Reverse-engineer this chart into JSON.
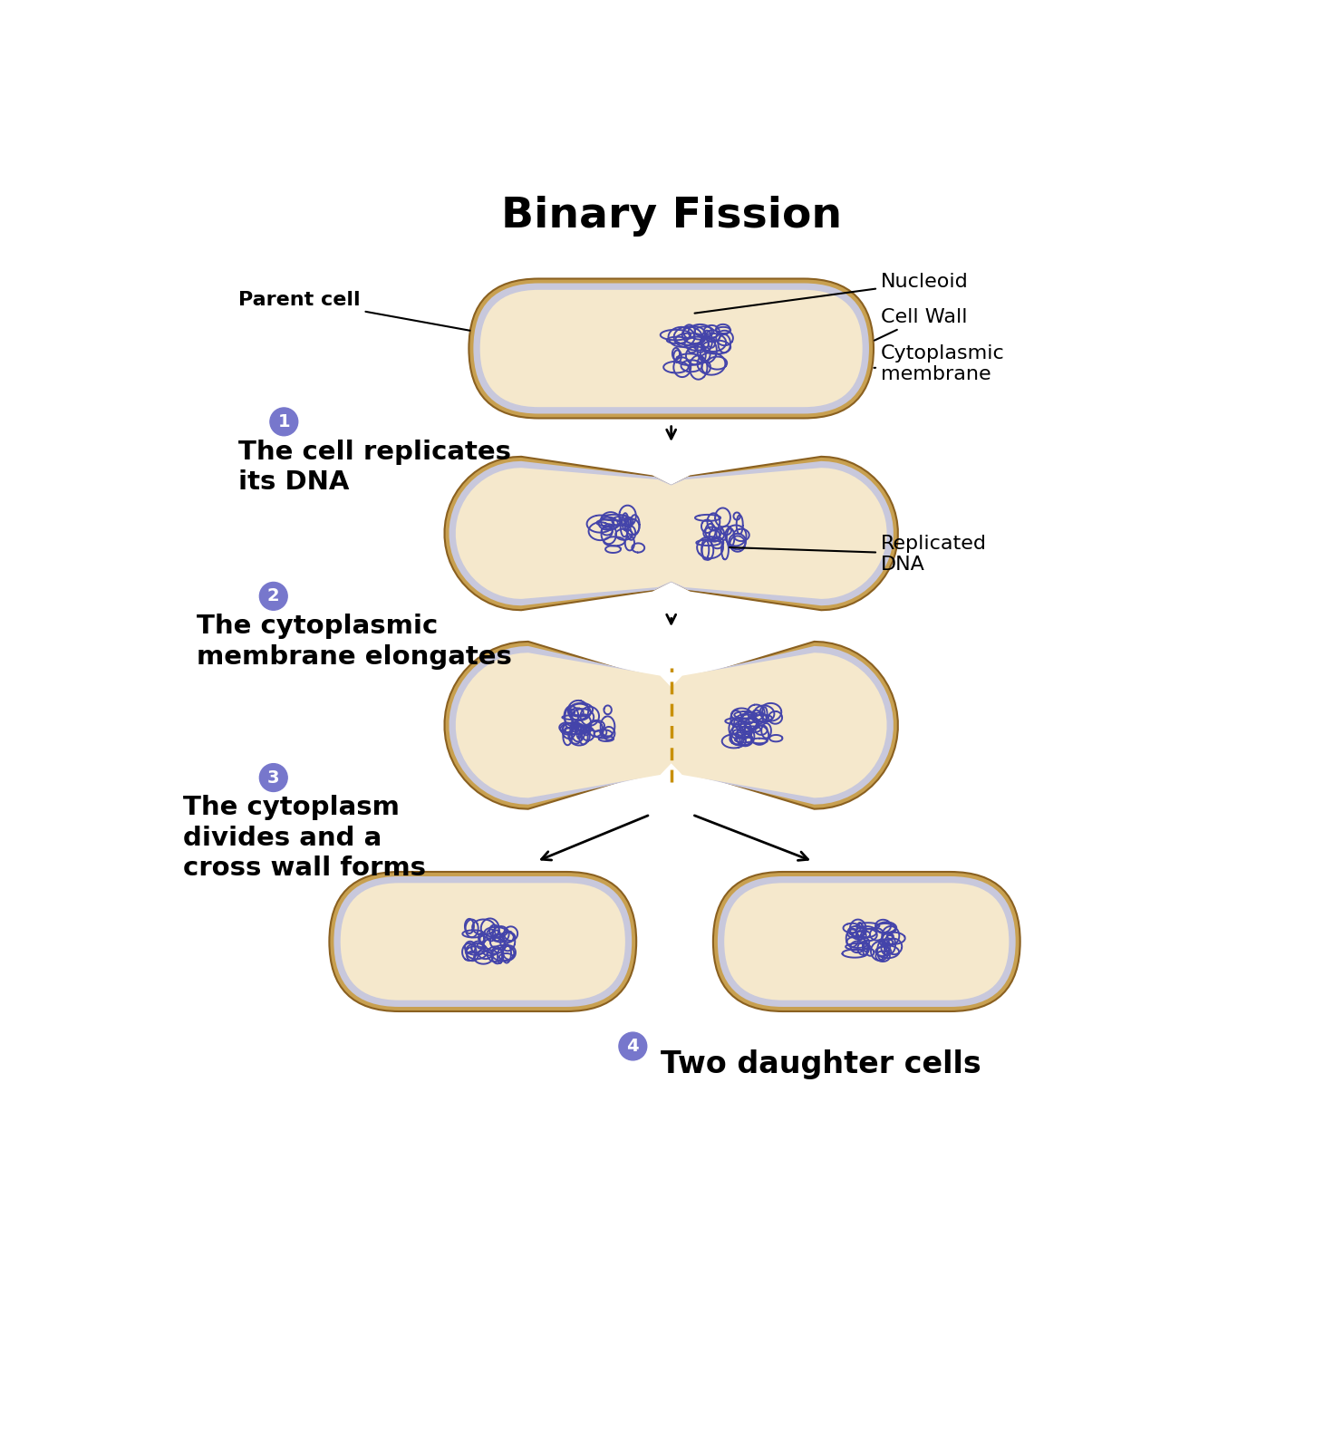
{
  "title": "Binary Fission",
  "title_fontsize": 34,
  "title_fontweight": "bold",
  "bg_color": "#ffffff",
  "cell_wall_color_outer": "#c8a050",
  "cell_wall_color_line": "#8a6020",
  "cell_membrane_color": "#c8c8dc",
  "cytoplasm_color": "#f5e8cc",
  "dna_color": "#4444aa",
  "step_circle_color": "#7777cc",
  "step_text_color": "#ffffff",
  "label_fontsize": 16,
  "step_label_fontsize": 21,
  "labels": {
    "parent_cell": "Parent cell",
    "nucleoid": "Nucleoid",
    "cell_wall": "Cell Wall",
    "cytoplasmic_membrane": "Cytoplasmic\nmembrane",
    "replicated_dna": "Replicated\nDNA",
    "step1_text": "The cell replicates\nits DNA",
    "step2_text": "The cytoplasmic\nmembrane elongates",
    "step3_text": "The cytoplasm\ndivides and a\ncross wall forms",
    "step4_text": "Two daughter cells"
  }
}
